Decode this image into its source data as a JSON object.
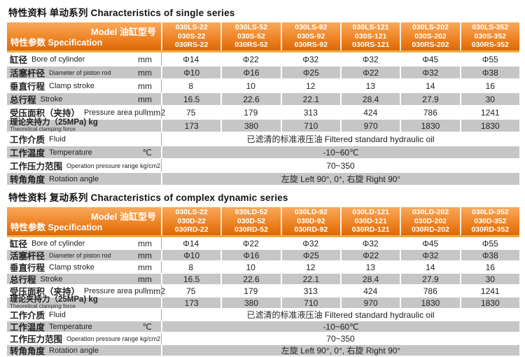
{
  "colors": {
    "header_gradient_top": "#f9a95c",
    "header_gradient_mid": "#ee8526",
    "header_gradient_bottom": "#dd6807",
    "gold_strip": "#efae43",
    "row_stripe_gray": "#c6c6c6",
    "header_text": "#ffffff",
    "body_text": "#222222"
  },
  "tables": [
    {
      "title": "特性资料  单动系列 Characteristics of single series",
      "header": {
        "model_label": "Model 油缸型号",
        "spec_label": "特性参数 Specification"
      },
      "columns": [
        [
          "030LS-22",
          "030S-22",
          "030RS-22"
        ],
        [
          "030LS-52",
          "030S-52",
          "030RS-52"
        ],
        [
          "030LS-92",
          "030S-92",
          "030RS-92"
        ],
        [
          "030LS-121",
          "030S-121",
          "030RS-121"
        ],
        [
          "030LS-202",
          "030S-202",
          "030RS-202"
        ],
        [
          "030LS-352",
          "030S-352",
          "030RS-352"
        ]
      ],
      "rows": [
        {
          "key": "bore",
          "zh": "缸径",
          "en": "Bore of cylinder",
          "unit": "mm",
          "values": [
            "Φ14",
            "Φ22",
            "Φ32",
            "Φ32",
            "Φ45",
            "Φ55"
          ]
        },
        {
          "key": "piston-rod",
          "zh": "活塞杆径",
          "en": "Diameter of piston rod",
          "unit": "mm",
          "values": [
            "Φ10",
            "Φ16",
            "Φ25",
            "Φ22",
            "Φ32",
            "Φ38"
          ]
        },
        {
          "key": "clamp-stroke",
          "zh": "垂直行程",
          "en": "Clamp stroke",
          "unit": "mm",
          "values": [
            "8",
            "10",
            "12",
            "13",
            "14",
            "16"
          ]
        },
        {
          "key": "stroke",
          "zh": "总行程",
          "en": "Stroke",
          "unit": "mm",
          "values": [
            "16.5",
            "22.6",
            "22.1",
            "28.4",
            "27.9",
            "30"
          ]
        },
        {
          "key": "pressure-area",
          "zh": "受压面积（夹持）",
          "en": "Pressure area pull",
          "unit": "mm2",
          "values": [
            "75",
            "179",
            "313",
            "424",
            "786",
            "1241"
          ]
        },
        {
          "key": "clamping-force",
          "zh": "理论夹持力（25MPa) kg",
          "en": "",
          "sub": "Theoretical clamping force",
          "unit": "",
          "values": [
            "173",
            "380",
            "710",
            "970",
            "1830",
            "1830"
          ]
        },
        {
          "key": "fluid",
          "zh": "工作介质",
          "en": "Fluid",
          "unit": "",
          "merged": "已滤清的标准液压油  Filtered standard hydraulic oil"
        },
        {
          "key": "temperature",
          "zh": "工作温度",
          "en": "Temperature",
          "unit": "℃",
          "merged": "-10~60℃"
        },
        {
          "key": "pressure-range",
          "zh": "工作压力范围",
          "en": "Operation pressure range kg/cm2",
          "unit": "",
          "merged": "70~350"
        },
        {
          "key": "rotation-angle",
          "zh": "转角角度",
          "en": "Rotation angle",
          "unit": "",
          "merged": "左旋 Left 90°, 0°, 右旋 Right 90°"
        }
      ]
    },
    {
      "title": "特性资料  复动系列 Characteristics of complex dynamic series",
      "header": {
        "model_label": "Model 油缸型号",
        "spec_label": "特性参数 Specification"
      },
      "columns": [
        [
          "030LS-22",
          "030D-22",
          "030RD-22"
        ],
        [
          "030LD-52",
          "030D-52",
          "030RD-52"
        ],
        [
          "030LD-92",
          "030D-92",
          "030RD-92"
        ],
        [
          "030LD-121",
          "030D-121",
          "030RD-121"
        ],
        [
          "030LD-202",
          "030D-202",
          "030RD-202"
        ],
        [
          "030LD-352",
          "030D-352",
          "030RD-352"
        ]
      ],
      "rows": [
        {
          "key": "bore",
          "zh": "缸径",
          "en": "Bore of cylinder",
          "unit": "mm",
          "values": [
            "Φ14",
            "Φ22",
            "Φ32",
            "Φ32",
            "Φ45",
            "Φ55"
          ]
        },
        {
          "key": "piston-rod",
          "zh": "活塞杆径",
          "en": "Diameter of piston rod",
          "unit": "mm",
          "values": [
            "Φ10",
            "Φ16",
            "Φ25",
            "Φ22",
            "Φ32",
            "Φ38"
          ]
        },
        {
          "key": "clamp-stroke",
          "zh": "垂直行程",
          "en": "Clamp stroke",
          "unit": "mm",
          "values": [
            "8",
            "10",
            "12",
            "13",
            "14",
            "16"
          ]
        },
        {
          "key": "stroke",
          "zh": "总行程",
          "en": "Stroke",
          "unit": "mm",
          "values": [
            "16.5",
            "22.6",
            "22.1",
            "28.4",
            "27.9",
            "30"
          ]
        },
        {
          "key": "pressure-area",
          "zh": "受压面积（夹持）",
          "en": "Pressure area pull",
          "unit": "mm2",
          "values": [
            "75",
            "179",
            "313",
            "424",
            "786",
            "1241"
          ]
        },
        {
          "key": "clamping-force",
          "zh": "理论夹持力（25MPa) kg",
          "en": "",
          "sub": "Theoretical clamping force",
          "unit": "",
          "values": [
            "173",
            "380",
            "710",
            "970",
            "1830",
            "1830"
          ]
        },
        {
          "key": "fluid",
          "zh": "工作介质",
          "en": "Fluid",
          "unit": "",
          "merged": "已滤清的标准液压油  Filtered standard hydraulic oil"
        },
        {
          "key": "temperature",
          "zh": "工作温度",
          "en": "Temperature",
          "unit": "℃",
          "merged": "-10~60℃"
        },
        {
          "key": "pressure-range",
          "zh": "工作压力范围",
          "en": "Operation pressure range kg/cm2",
          "unit": "",
          "merged": "70~350"
        },
        {
          "key": "rotation-angle",
          "zh": "转角角度",
          "en": "Rotation angle",
          "unit": "",
          "merged": "左旋 Left 90°, 0°, 右旋 Right 90°"
        }
      ]
    }
  ]
}
